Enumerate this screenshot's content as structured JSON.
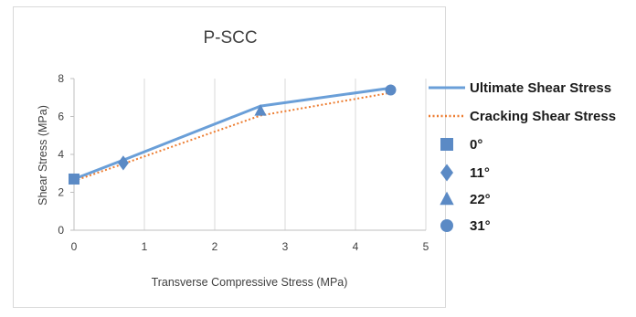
{
  "chart_data": {
    "type": "line",
    "title": "P-SCC",
    "xlabel": "Transverse Compressive Stress (MPa)",
    "ylabel": "Shear Stress (MPa)",
    "xlim": [
      0,
      5
    ],
    "ylim": [
      0,
      8
    ],
    "x_ticks": [
      0,
      1,
      2,
      3,
      4,
      5
    ],
    "y_ticks": [
      0,
      2,
      4,
      6,
      8
    ],
    "grid": "vertical",
    "legend_position": "right",
    "marker_color": "#5b8ac5",
    "series": [
      {
        "name": "Ultimate Shear Stress",
        "kind": "line",
        "style": "solid",
        "color": "#6a9fd8",
        "x": [
          0,
          0.7,
          2.65,
          4.5
        ],
        "y": [
          2.7,
          3.7,
          6.55,
          7.5
        ]
      },
      {
        "name": "Cracking Shear Stress",
        "kind": "line",
        "style": "dotted",
        "color": "#ed7d31",
        "x": [
          0,
          0.7,
          2.65,
          4.5
        ],
        "y": [
          2.6,
          3.5,
          6.05,
          7.25
        ]
      },
      {
        "name": "0°",
        "kind": "marker",
        "marker": "square",
        "x": [
          0
        ],
        "y": [
          2.7
        ]
      },
      {
        "name": "11°",
        "kind": "marker",
        "marker": "diamond",
        "x": [
          0.7
        ],
        "y": [
          3.55
        ]
      },
      {
        "name": "22°",
        "kind": "marker",
        "marker": "triangle",
        "x": [
          2.65
        ],
        "y": [
          6.3
        ]
      },
      {
        "name": "31°",
        "kind": "marker",
        "marker": "circle",
        "x": [
          4.5
        ],
        "y": [
          7.4
        ]
      }
    ]
  }
}
